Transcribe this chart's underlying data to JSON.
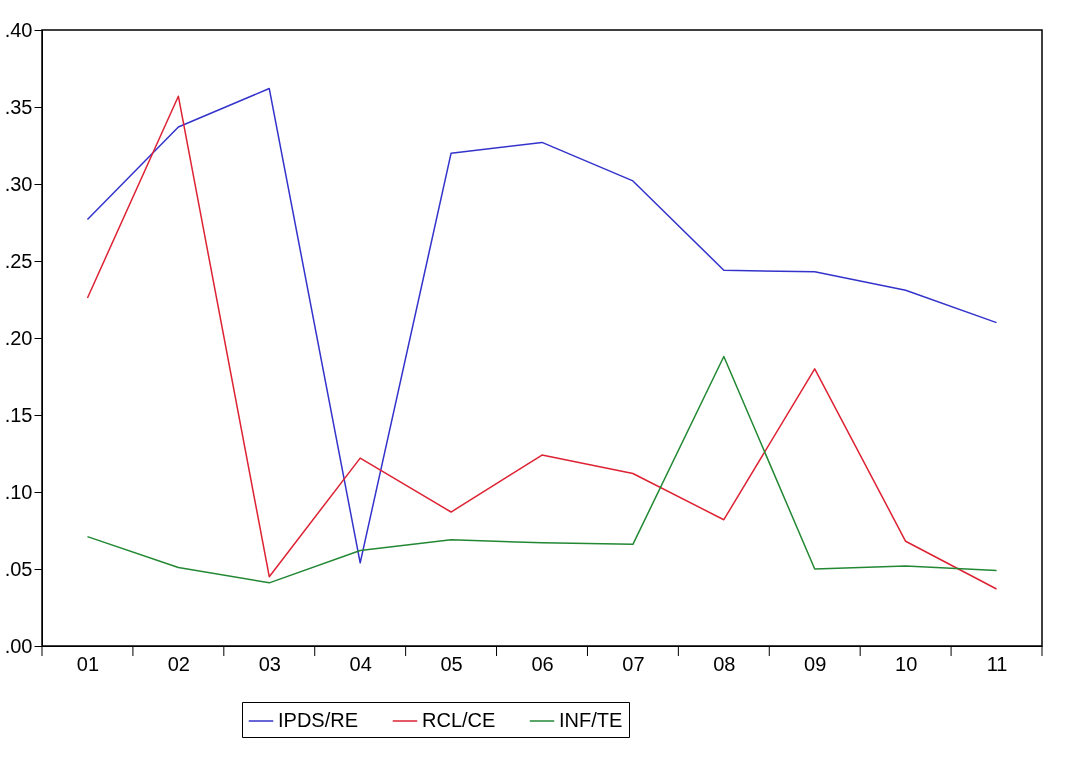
{
  "chart_data": {
    "type": "line",
    "categories": [
      "01",
      "02",
      "03",
      "04",
      "05",
      "06",
      "07",
      "08",
      "09",
      "10",
      "11"
    ],
    "series": [
      {
        "name": "IPDS/RE",
        "color": "#3333cc",
        "values": [
          0.277,
          0.337,
          0.362,
          0.054,
          0.32,
          0.327,
          0.302,
          0.244,
          0.243,
          0.231,
          0.21
        ]
      },
      {
        "name": "RCL/CE",
        "color": "#dd2233",
        "values": [
          0.226,
          0.357,
          0.045,
          0.122,
          0.087,
          0.124,
          0.112,
          0.082,
          0.18,
          0.068,
          0.037
        ]
      },
      {
        "name": "INF/TE",
        "color": "#228833",
        "values": [
          0.071,
          0.051,
          0.041,
          0.062,
          0.069,
          0.067,
          0.066,
          0.188,
          0.05,
          0.052,
          0.049
        ]
      }
    ],
    "ylim": [
      0,
      0.4
    ],
    "yticks": [
      {
        "value": 0,
        "label": ".00"
      },
      {
        "value": 0.05,
        "label": ".05"
      },
      {
        "value": 0.1,
        "label": ".10"
      },
      {
        "value": 0.15,
        "label": ".15"
      },
      {
        "value": 0.2,
        "label": ".20"
      },
      {
        "value": 0.25,
        "label": ".25"
      },
      {
        "value": 0.3,
        "label": ".30"
      },
      {
        "value": 0.35,
        "label": ".35"
      },
      {
        "value": 0.4,
        "label": ".40"
      }
    ],
    "grid": false,
    "legend": "bottom",
    "line_style": "solid"
  }
}
